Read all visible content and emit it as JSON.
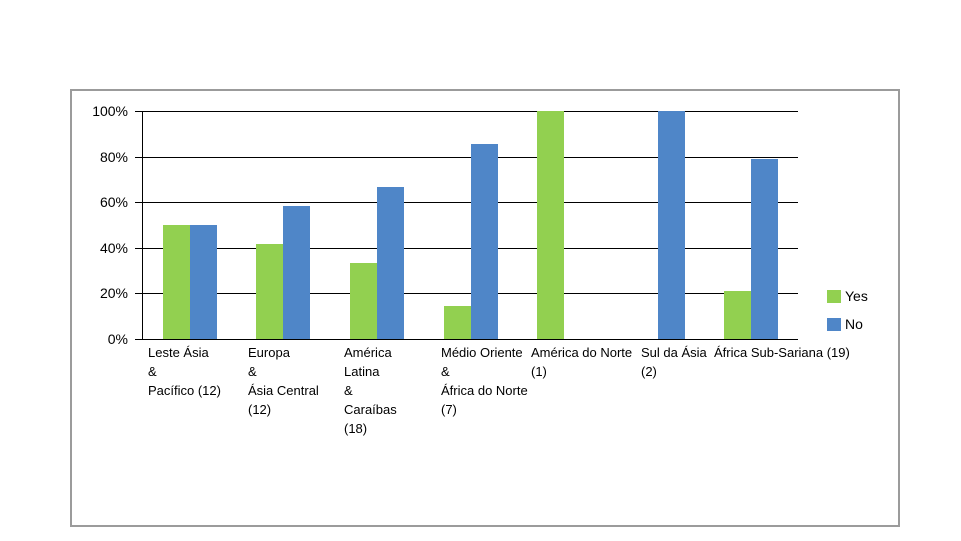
{
  "chart_data": {
    "type": "bar",
    "title": "",
    "categories": [
      "Leste Ásia\n&\nPacífico (12)",
      "Europa\n&\nÁsia Central\n(12)",
      "América\nLatina\n&\nCaraíbas\n(18)",
      "Médio Oriente\n&\nÁfrica do Norte\n(7)",
      "América do Norte\n(1)",
      "Sul da Ásia\n(2)",
      "África Sub-Sariana (19)"
    ],
    "series": [
      {
        "name": "Yes",
        "color": "#92D050",
        "values": [
          50,
          41.7,
          33.3,
          14.3,
          100,
          0,
          21.1
        ]
      },
      {
        "name": "No",
        "color": "#4F86C8",
        "values": [
          50,
          58.3,
          66.7,
          85.7,
          0,
          100,
          78.9
        ]
      }
    ],
    "y_tick_labels": [
      "0%",
      "20%",
      "40%",
      "60%",
      "80%",
      "100%"
    ],
    "ylim": [
      0,
      100
    ],
    "y_tick_step": 20,
    "grid": true,
    "legend_position": "right",
    "axis_color": "#000000",
    "frame_border_color": "#9b9b9b"
  }
}
